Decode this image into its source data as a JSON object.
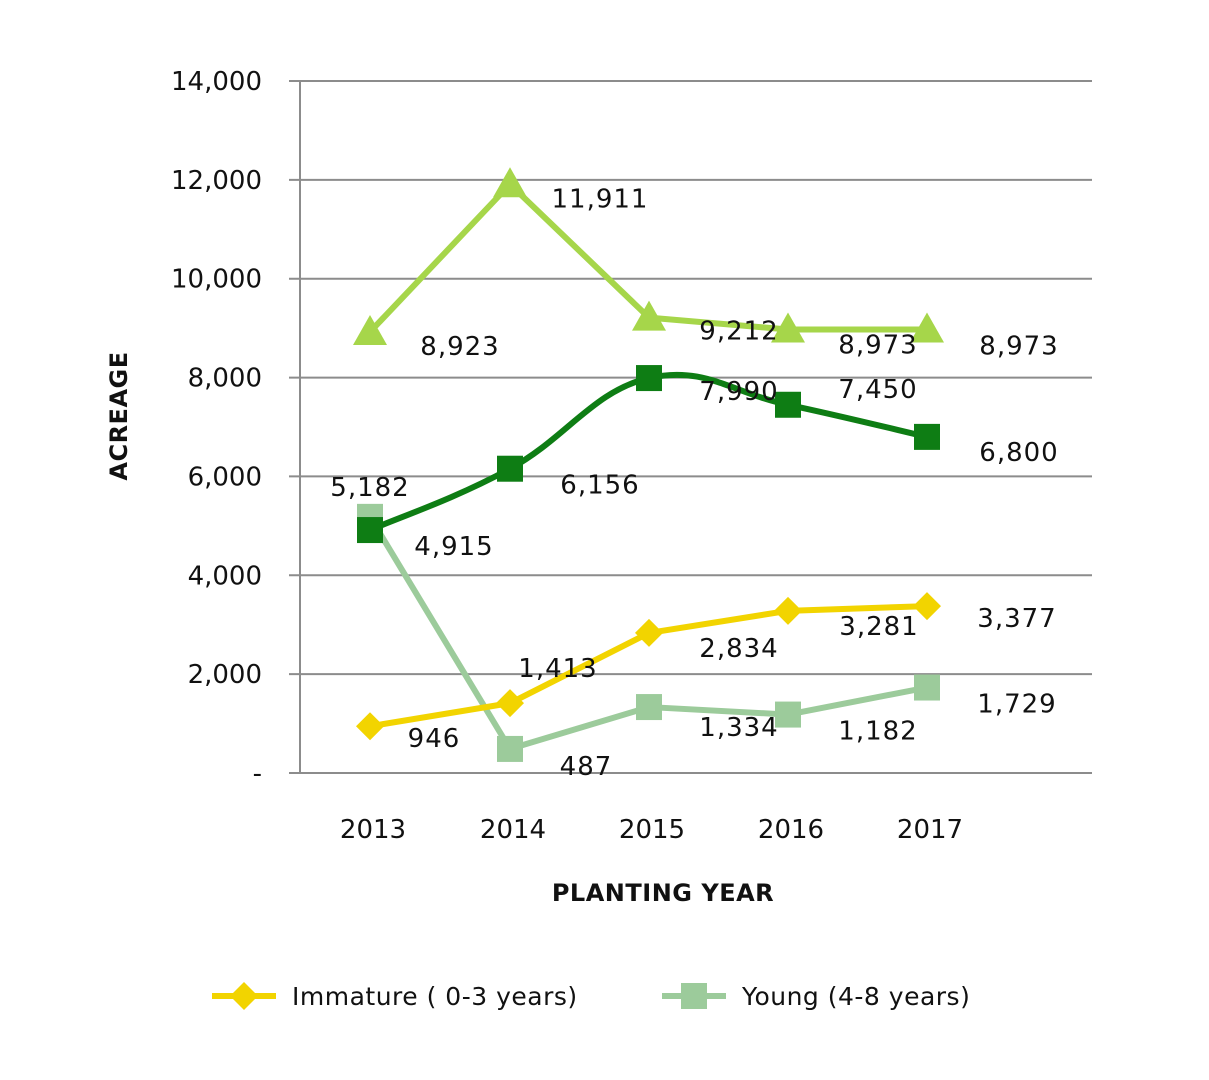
{
  "chart_data": {
    "type": "line",
    "title": "",
    "xlabel": "PLANTING YEAR",
    "ylabel": "ACREAGE",
    "categories": [
      "2013",
      "2014",
      "2015",
      "2016",
      "2017"
    ],
    "ylim": [
      0,
      14000
    ],
    "yticks": [
      0,
      2000,
      4000,
      6000,
      8000,
      10000,
      12000,
      14000
    ],
    "ytick_labels": [
      "-",
      "2,000",
      "4,000",
      "6,000",
      "8,000",
      "10,000",
      "12,000",
      "14,000"
    ],
    "grid": true,
    "legend_placement": "bottom",
    "series": [
      {
        "name": "",
        "color": "#a6d64a",
        "marker": "triangle",
        "smooth": false,
        "values": [
          8923,
          11911,
          9212,
          8973,
          8973
        ],
        "labels": [
          "8,923",
          "11,911",
          "9,212",
          "8,973",
          "8,973"
        ]
      },
      {
        "name": "",
        "color": "#0e7d14",
        "marker": "square",
        "smooth": true,
        "values": [
          4915,
          6156,
          7990,
          7450,
          6800
        ],
        "labels": [
          "4,915",
          "6,156",
          "7,990",
          "7,450",
          "6,800"
        ]
      },
      {
        "name": "Immature ( 0-3 years)",
        "color": "#f2d400",
        "marker": "diamond",
        "smooth": false,
        "values": [
          946,
          1413,
          2834,
          3281,
          3377
        ],
        "labels": [
          "946",
          "1,413",
          "2,834",
          "3,281",
          "3,377"
        ]
      },
      {
        "name": "Young (4-8 years)",
        "color": "#9ccb9b",
        "marker": "square",
        "smooth": false,
        "values": [
          5182,
          487,
          1334,
          1182,
          1729
        ],
        "labels": [
          "5,182",
          "487",
          "1,334",
          "1,182",
          "1,729"
        ]
      }
    ]
  }
}
